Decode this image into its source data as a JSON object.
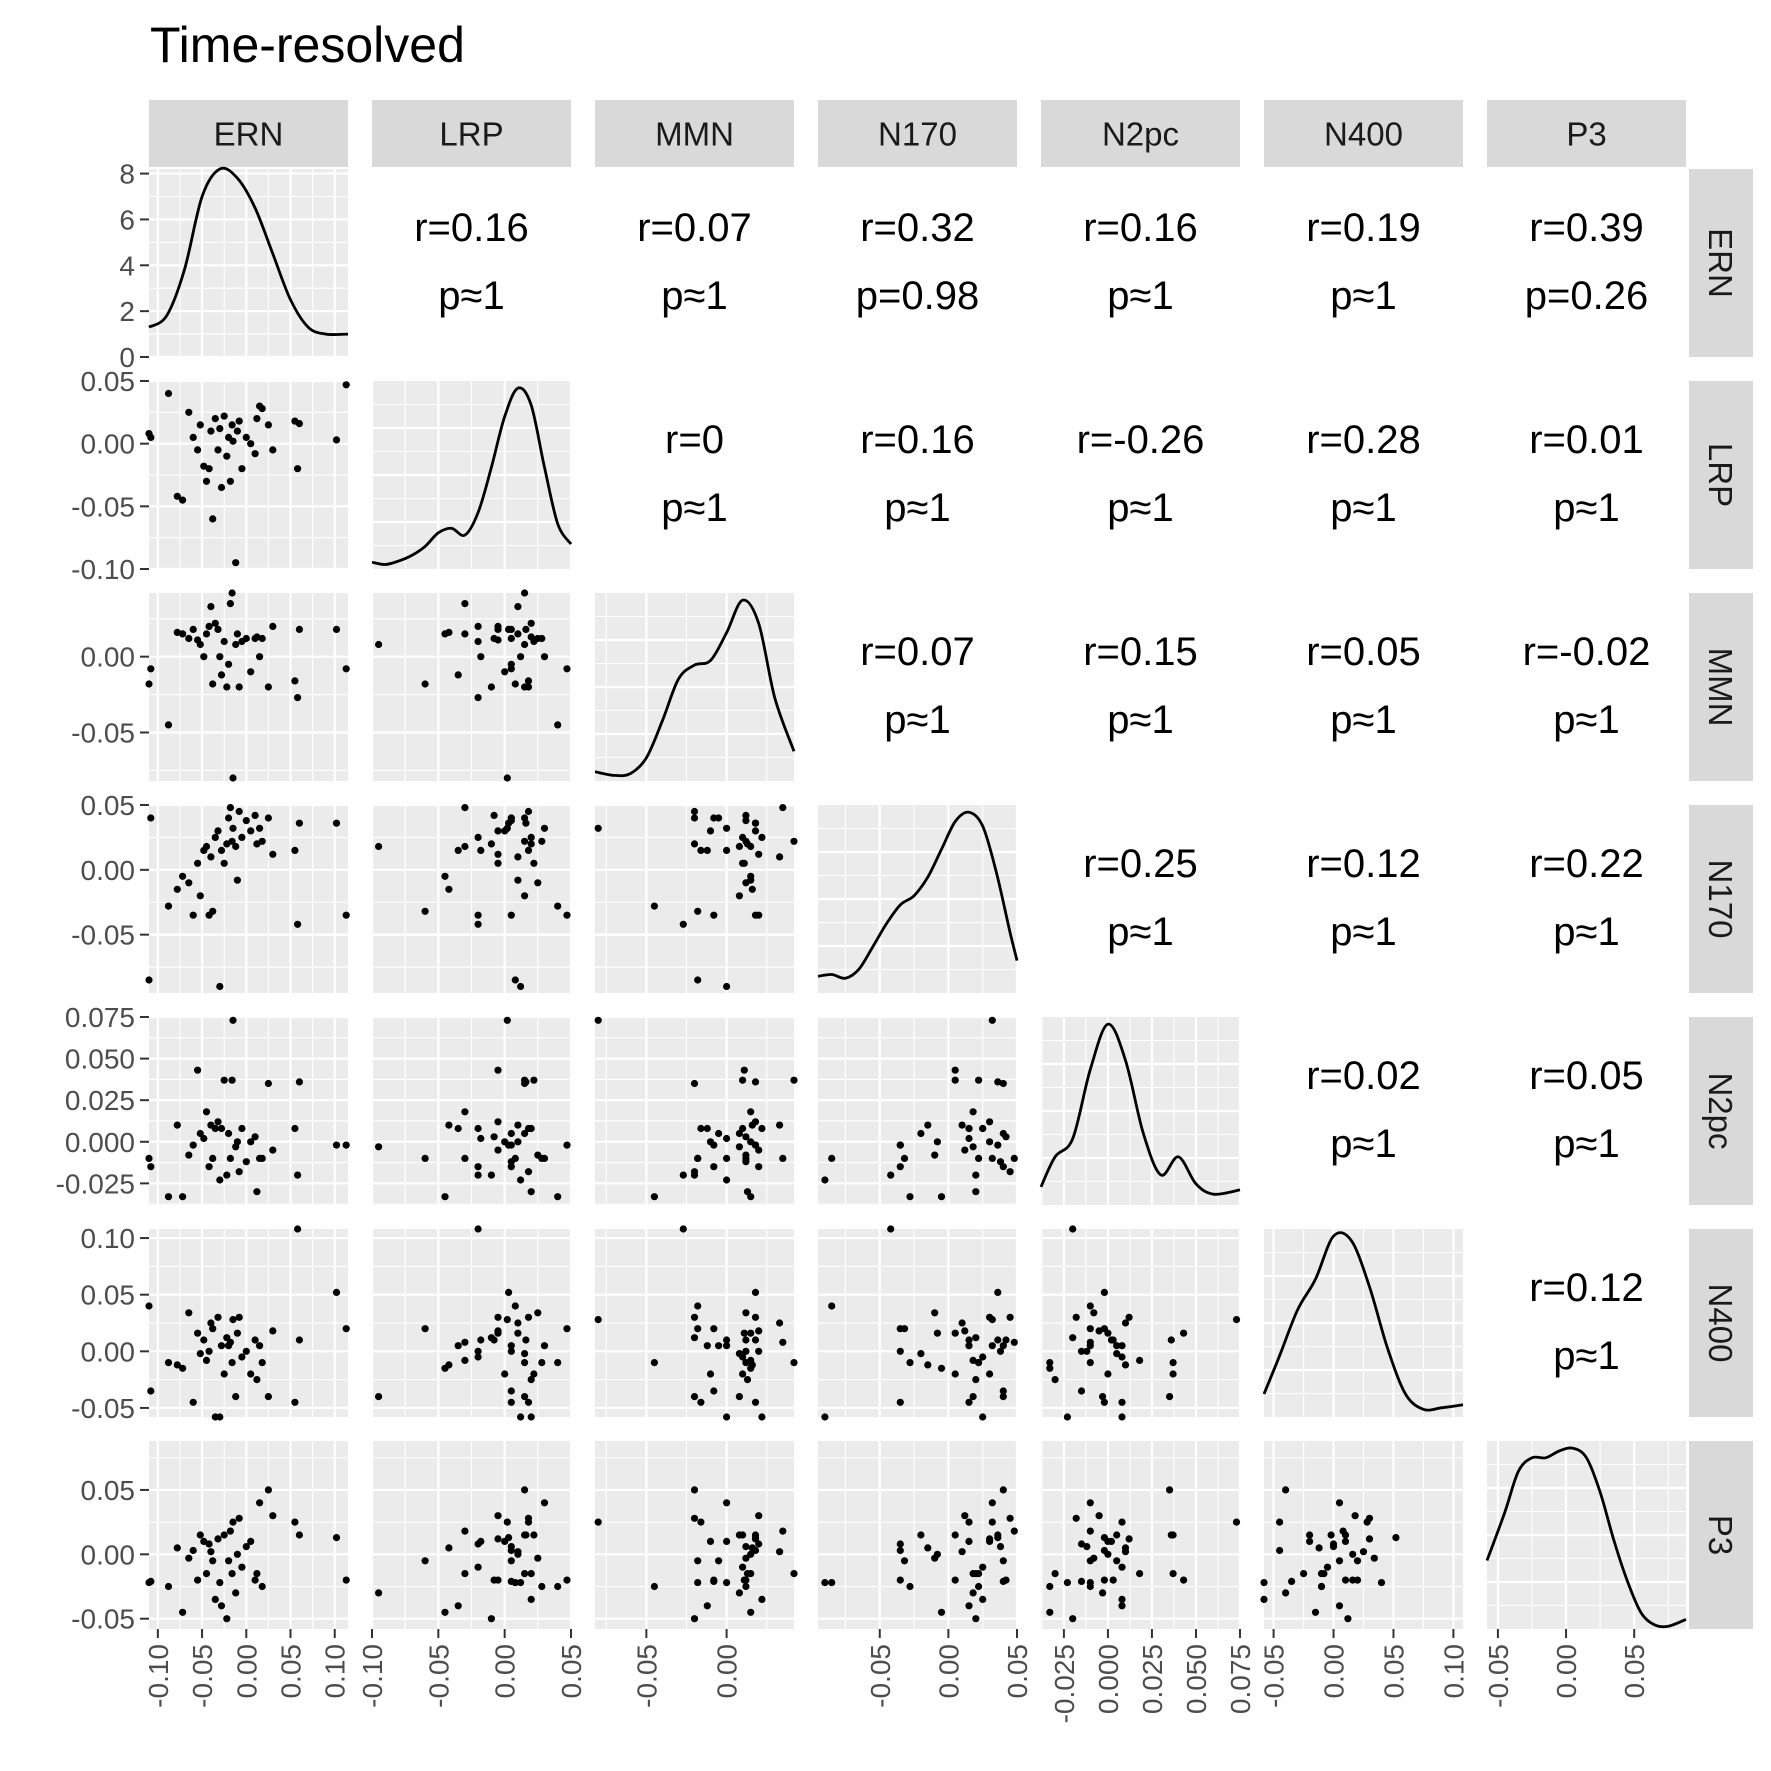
{
  "chart_data": {
    "type": "scatter-matrix",
    "title": "Time-resolved",
    "variables": [
      "ERN",
      "LRP",
      "MMN",
      "N170",
      "N2pc",
      "N400",
      "P3"
    ],
    "x_ranges": [
      [
        -0.11,
        0.115
      ],
      [
        -0.1,
        0.05
      ],
      [
        -0.082,
        0.042
      ],
      [
        -0.095,
        0.05
      ],
      [
        -0.038,
        0.075
      ],
      [
        -0.058,
        0.108
      ],
      [
        -0.058,
        0.088
      ]
    ],
    "y_ranges": [
      [
        -0.11,
        0.115
      ],
      [
        -0.1,
        0.05
      ],
      [
        -0.082,
        0.042
      ],
      [
        -0.095,
        0.05
      ],
      [
        -0.038,
        0.075
      ],
      [
        -0.058,
        0.108
      ],
      [
        -0.058,
        0.088
      ]
    ],
    "density_ylim": [
      0,
      8.2
    ],
    "density_breaks": [
      0,
      2,
      4,
      6,
      8
    ],
    "x_breaks": [
      [
        -0.1,
        -0.05,
        0.0,
        0.05,
        0.1
      ],
      [
        -0.1,
        -0.05,
        0.0,
        0.05
      ],
      [
        -0.05,
        0.0
      ],
      [
        -0.05,
        0.0,
        0.05
      ],
      [
        -0.025,
        0.0,
        0.025,
        0.05,
        0.075
      ],
      [
        -0.05,
        0.0,
        0.05,
        0.1
      ],
      [
        -0.05,
        0.0,
        0.05
      ]
    ],
    "x_tick_labels": [
      [
        "-0.10",
        "-0.05",
        "0.00",
        "0.05",
        "0.10"
      ],
      [
        "-0.10",
        "-0.05",
        "0.00",
        "0.05"
      ],
      [
        "-0.05",
        "0.00"
      ],
      [
        "-0.05",
        "0.00",
        "0.05"
      ],
      [
        "-0.025",
        "0.000",
        "0.025",
        "0.050",
        "0.075"
      ],
      [
        "-0.05",
        "0.00",
        "0.05",
        "0.10"
      ],
      [
        "-0.05",
        "0.00",
        "0.05"
      ]
    ],
    "y_breaks": [
      [
        0,
        2,
        4,
        6,
        8
      ],
      [
        -0.1,
        -0.05,
        0.0,
        0.05
      ],
      [
        -0.05,
        0.0
      ],
      [
        -0.05,
        0.0,
        0.05
      ],
      [
        -0.025,
        0.0,
        0.025,
        0.05,
        0.075
      ],
      [
        -0.05,
        0.0,
        0.05,
        0.1
      ],
      [
        -0.05,
        0.0,
        0.05
      ]
    ],
    "y_tick_labels": [
      [
        "0",
        "2",
        "4",
        "6",
        "8"
      ],
      [
        "-0.10",
        "-0.05",
        "0.00",
        "0.05"
      ],
      [
        "-0.05",
        "0.00"
      ],
      [
        "-0.05",
        "0.00",
        "0.05"
      ],
      [
        "-0.025",
        "0.000",
        "0.025",
        "0.050",
        "0.075"
      ],
      [
        "-0.05",
        "0.00",
        "0.05",
        "0.10"
      ],
      [
        "-0.05",
        "0.00",
        "0.05"
      ]
    ],
    "correlations": [
      {
        "row": 0,
        "col": 1,
        "r": "r=0.16",
        "p": "p≈1"
      },
      {
        "row": 0,
        "col": 2,
        "r": "r=0.07",
        "p": "p≈1"
      },
      {
        "row": 0,
        "col": 3,
        "r": "r=0.32",
        "p": "p=0.98"
      },
      {
        "row": 0,
        "col": 4,
        "r": "r=0.16",
        "p": "p≈1"
      },
      {
        "row": 0,
        "col": 5,
        "r": "r=0.19",
        "p": "p≈1"
      },
      {
        "row": 0,
        "col": 6,
        "r": "r=0.39",
        "p": "p=0.26"
      },
      {
        "row": 1,
        "col": 2,
        "r": "r=0",
        "p": "p≈1"
      },
      {
        "row": 1,
        "col": 3,
        "r": "r=0.16",
        "p": "p≈1"
      },
      {
        "row": 1,
        "col": 4,
        "r": "r=-0.26",
        "p": "p≈1"
      },
      {
        "row": 1,
        "col": 5,
        "r": "r=0.28",
        "p": "p≈1"
      },
      {
        "row": 1,
        "col": 6,
        "r": "r=0.01",
        "p": "p≈1"
      },
      {
        "row": 2,
        "col": 3,
        "r": "r=0.07",
        "p": "p≈1"
      },
      {
        "row": 2,
        "col": 4,
        "r": "r=0.15",
        "p": "p≈1"
      },
      {
        "row": 2,
        "col": 5,
        "r": "r=0.05",
        "p": "p≈1"
      },
      {
        "row": 2,
        "col": 6,
        "r": "r=-0.02",
        "p": "p≈1"
      },
      {
        "row": 3,
        "col": 4,
        "r": "r=0.25",
        "p": "p≈1"
      },
      {
        "row": 3,
        "col": 5,
        "r": "r=0.12",
        "p": "p≈1"
      },
      {
        "row": 3,
        "col": 6,
        "r": "r=0.22",
        "p": "p≈1"
      },
      {
        "row": 4,
        "col": 5,
        "r": "r=0.02",
        "p": "p≈1"
      },
      {
        "row": 4,
        "col": 6,
        "r": "r=0.05",
        "p": "p≈1"
      },
      {
        "row": 5,
        "col": 6,
        "r": "r=0.12",
        "p": "p≈1"
      }
    ],
    "densities": [
      {
        "variable": "ERN",
        "x": [
          -0.11,
          -0.09,
          -0.07,
          -0.05,
          -0.03,
          -0.01,
          0.01,
          0.03,
          0.05,
          0.07,
          0.09,
          0.115
        ],
        "y": [
          1.3,
          1.8,
          3.8,
          7.0,
          8.2,
          7.8,
          6.5,
          4.5,
          2.5,
          1.3,
          1.0,
          1.0
        ]
      },
      {
        "variable": "LRP",
        "x": [
          -0.1,
          -0.09,
          -0.08,
          -0.07,
          -0.06,
          -0.05,
          -0.04,
          -0.03,
          -0.02,
          -0.01,
          0.0,
          0.01,
          0.02,
          0.03,
          0.04,
          0.05
        ],
        "y": [
          0.6,
          0.4,
          0.7,
          1.2,
          2.0,
          3.2,
          3.6,
          3.0,
          5.0,
          9.0,
          13.5,
          16.0,
          14.5,
          9.0,
          4.0,
          2.2
        ]
      },
      {
        "variable": "MMN",
        "x": [
          -0.082,
          -0.07,
          -0.06,
          -0.05,
          -0.04,
          -0.03,
          -0.02,
          -0.01,
          0.0,
          0.01,
          0.02,
          0.03,
          0.042
        ],
        "y": [
          1.0,
          0.6,
          0.8,
          2.5,
          6.5,
          11.0,
          12.5,
          13.0,
          16.0,
          19.5,
          17.0,
          9.0,
          3.2
        ]
      },
      {
        "variable": "N170",
        "x": [
          -0.095,
          -0.085,
          -0.075,
          -0.065,
          -0.055,
          -0.045,
          -0.035,
          -0.025,
          -0.015,
          -0.005,
          0.005,
          0.015,
          0.025,
          0.035,
          0.045,
          0.05
        ],
        "y": [
          1.8,
          2.0,
          1.6,
          2.6,
          5.0,
          7.5,
          9.5,
          10.5,
          12.5,
          15.5,
          18.5,
          19.5,
          18.0,
          13.0,
          6.5,
          3.5
        ]
      },
      {
        "variable": "N2pc",
        "x": [
          -0.038,
          -0.03,
          -0.02,
          -0.01,
          0.0,
          0.01,
          0.02,
          0.03,
          0.04,
          0.05,
          0.06,
          0.075
        ],
        "y": [
          3.0,
          8.0,
          11.0,
          22.5,
          30.0,
          24.0,
          12.0,
          5.0,
          8.0,
          3.5,
          1.8,
          2.5
        ]
      },
      {
        "variable": "N400",
        "x": [
          -0.058,
          -0.045,
          -0.03,
          -0.015,
          0.0,
          0.015,
          0.03,
          0.045,
          0.06,
          0.075,
          0.09,
          0.108
        ],
        "y": [
          1.5,
          4.0,
          7.0,
          9.0,
          11.8,
          11.5,
          8.5,
          4.5,
          1.5,
          0.5,
          0.6,
          0.8
        ]
      },
      {
        "variable": "P3",
        "x": [
          -0.058,
          -0.045,
          -0.035,
          -0.025,
          -0.015,
          -0.005,
          0.005,
          0.015,
          0.025,
          0.035,
          0.045,
          0.055,
          0.065,
          0.075,
          0.088
        ],
        "y": [
          5.0,
          8.5,
          11.5,
          12.5,
          12.5,
          13.0,
          13.2,
          12.5,
          10.0,
          6.5,
          3.5,
          1.2,
          0.3,
          0.2,
          0.7
        ]
      }
    ],
    "observations": [
      {
        "ERN": -0.108,
        "LRP": 0.005,
        "MMN": -0.008,
        "N170": 0.04,
        "N2pc": -0.015,
        "N400": -0.035,
        "P3": -0.021
      },
      {
        "ERN": -0.11,
        "LRP": 0.008,
        "MMN": -0.018,
        "N170": -0.085,
        "N2pc": -0.01,
        "N400": 0.04,
        "P3": -0.022
      },
      {
        "ERN": -0.088,
        "LRP": 0.04,
        "MMN": -0.045,
        "N170": -0.028,
        "N2pc": -0.033,
        "N400": -0.01,
        "P3": -0.025
      },
      {
        "ERN": -0.072,
        "LRP": -0.045,
        "MMN": 0.015,
        "N170": -0.005,
        "N2pc": -0.033,
        "N400": -0.015,
        "P3": -0.045
      },
      {
        "ERN": -0.065,
        "LRP": 0.025,
        "MMN": 0.012,
        "N170": -0.01,
        "N2pc": -0.008,
        "N400": 0.034,
        "P3": -0.003
      },
      {
        "ERN": -0.06,
        "LRP": 0.005,
        "MMN": 0.018,
        "N170": -0.035,
        "N2pc": -0.002,
        "N400": -0.045,
        "P3": 0.003
      },
      {
        "ERN": -0.055,
        "LRP": -0.005,
        "MMN": 0.011,
        "N170": 0.005,
        "N2pc": 0.043,
        "N400": 0.016,
        "P3": -0.02
      },
      {
        "ERN": -0.052,
        "LRP": 0.015,
        "MMN": 0.008,
        "N170": -0.02,
        "N2pc": 0.005,
        "N400": -0.002,
        "P3": 0.015
      },
      {
        "ERN": -0.048,
        "LRP": -0.018,
        "MMN": 0.0,
        "N170": 0.015,
        "N2pc": 0.002,
        "N400": 0.01,
        "P3": 0.01
      },
      {
        "ERN": -0.045,
        "LRP": -0.03,
        "MMN": 0.015,
        "N170": 0.018,
        "N2pc": 0.018,
        "N400": -0.008,
        "P3": -0.015
      },
      {
        "ERN": -0.042,
        "LRP": -0.02,
        "MMN": 0.02,
        "N170": -0.035,
        "N2pc": -0.015,
        "N400": 0.0,
        "P3": 0.008
      },
      {
        "ERN": -0.04,
        "LRP": 0.01,
        "MMN": 0.033,
        "N170": 0.01,
        "N2pc": 0.01,
        "N400": 0.025,
        "P3": 0.002
      },
      {
        "ERN": -0.038,
        "LRP": -0.06,
        "MMN": -0.018,
        "N170": -0.032,
        "N2pc": -0.01,
        "N400": 0.02,
        "P3": -0.005
      },
      {
        "ERN": -0.035,
        "LRP": 0.02,
        "MMN": 0.022,
        "N170": 0.025,
        "N2pc": 0.008,
        "N400": -0.058,
        "P3": -0.035
      },
      {
        "ERN": -0.032,
        "LRP": -0.005,
        "MMN": 0.018,
        "N170": 0.03,
        "N2pc": 0.012,
        "N400": 0.03,
        "P3": 0.012
      },
      {
        "ERN": -0.03,
        "LRP": 0.012,
        "MMN": 0.0,
        "N170": -0.09,
        "N2pc": -0.023,
        "N400": -0.058,
        "P3": -0.022
      },
      {
        "ERN": -0.028,
        "LRP": -0.035,
        "MMN": -0.012,
        "N170": 0.015,
        "N2pc": 0.008,
        "N400": 0.005,
        "P3": -0.04
      },
      {
        "ERN": -0.025,
        "LRP": 0.022,
        "MMN": 0.01,
        "N170": 0.005,
        "N2pc": 0.037,
        "N400": -0.02,
        "P3": 0.015
      },
      {
        "ERN": -0.022,
        "LRP": -0.01,
        "MMN": -0.02,
        "N170": 0.02,
        "N2pc": -0.02,
        "N400": 0.012,
        "P3": -0.05
      },
      {
        "ERN": -0.02,
        "LRP": 0.005,
        "MMN": -0.005,
        "N170": 0.04,
        "N2pc": 0.005,
        "N400": 0.005,
        "P3": -0.005
      },
      {
        "ERN": -0.018,
        "LRP": -0.03,
        "MMN": 0.035,
        "N170": 0.048,
        "N2pc": -0.01,
        "N400": 0.008,
        "P3": 0.018
      },
      {
        "ERN": -0.016,
        "LRP": 0.015,
        "MMN": 0.042,
        "N170": 0.022,
        "N2pc": 0.037,
        "N400": -0.01,
        "P3": -0.015
      },
      {
        "ERN": -0.015,
        "LRP": 0.002,
        "MMN": -0.08,
        "N170": 0.032,
        "N2pc": 0.073,
        "N400": 0.028,
        "P3": 0.025
      },
      {
        "ERN": -0.012,
        "LRP": -0.095,
        "MMN": 0.008,
        "N170": 0.018,
        "N2pc": -0.003,
        "N400": -0.04,
        "P3": -0.03
      },
      {
        "ERN": -0.01,
        "LRP": 0.01,
        "MMN": 0.015,
        "N170": -0.008,
        "N2pc": 0.0,
        "N400": 0.016,
        "P3": 0.0
      },
      {
        "ERN": -0.008,
        "LRP": 0.018,
        "MMN": -0.02,
        "N170": 0.045,
        "N2pc": -0.018,
        "N400": 0.03,
        "P3": 0.028
      },
      {
        "ERN": -0.005,
        "LRP": -0.02,
        "MMN": 0.01,
        "N170": 0.025,
        "N2pc": 0.008,
        "N400": -0.005,
        "P3": -0.01
      },
      {
        "ERN": 0.0,
        "LRP": 0.005,
        "MMN": 0.012,
        "N170": 0.038,
        "N2pc": -0.012,
        "N400": 0.0,
        "P3": 0.006
      },
      {
        "ERN": 0.005,
        "LRP": 0.0,
        "MMN": -0.01,
        "N170": 0.03,
        "N2pc": 0.0,
        "N400": -0.02,
        "P3": 0.01
      },
      {
        "ERN": 0.01,
        "LRP": -0.008,
        "MMN": 0.012,
        "N170": 0.042,
        "N2pc": 0.003,
        "N400": 0.01,
        "P3": -0.02
      },
      {
        "ERN": 0.012,
        "LRP": 0.02,
        "MMN": 0.013,
        "N170": 0.02,
        "N2pc": -0.03,
        "N400": -0.025,
        "P3": -0.015
      },
      {
        "ERN": 0.015,
        "LRP": 0.03,
        "MMN": 0.0,
        "N170": 0.032,
        "N2pc": -0.01,
        "N400": 0.005,
        "P3": 0.04
      },
      {
        "ERN": 0.018,
        "LRP": 0.028,
        "MMN": 0.012,
        "N170": 0.022,
        "N2pc": -0.01,
        "N400": -0.01,
        "P3": -0.025
      },
      {
        "ERN": 0.025,
        "LRP": 0.015,
        "MMN": -0.02,
        "N170": 0.04,
        "N2pc": 0.035,
        "N400": -0.04,
        "P3": 0.05
      },
      {
        "ERN": 0.055,
        "LRP": 0.018,
        "MMN": -0.016,
        "N170": 0.015,
        "N2pc": 0.008,
        "N400": -0.045,
        "P3": 0.025
      },
      {
        "ERN": 0.058,
        "LRP": -0.02,
        "MMN": -0.027,
        "N170": -0.042,
        "N2pc": -0.02,
        "N400": 0.108,
        "P3": 0.09
      },
      {
        "ERN": 0.06,
        "LRP": 0.016,
        "MMN": 0.018,
        "N170": 0.036,
        "N2pc": 0.036,
        "N400": 0.01,
        "P3": 0.015
      },
      {
        "ERN": 0.102,
        "LRP": 0.003,
        "MMN": 0.018,
        "N170": 0.036,
        "N2pc": -0.002,
        "N400": 0.052,
        "P3": 0.013
      },
      {
        "ERN": 0.113,
        "LRP": 0.047,
        "MMN": -0.008,
        "N170": -0.035,
        "N2pc": -0.002,
        "N400": 0.02,
        "P3": -0.02
      },
      {
        "ERN": -0.078,
        "LRP": -0.042,
        "MMN": 0.016,
        "N170": -0.015,
        "N2pc": 0.01,
        "N400": -0.012,
        "P3": 0.005
      },
      {
        "ERN": 0.03,
        "LRP": -0.005,
        "MMN": 0.02,
        "N170": 0.012,
        "N2pc": -0.005,
        "N400": 0.018,
        "P3": 0.03
      }
    ]
  }
}
